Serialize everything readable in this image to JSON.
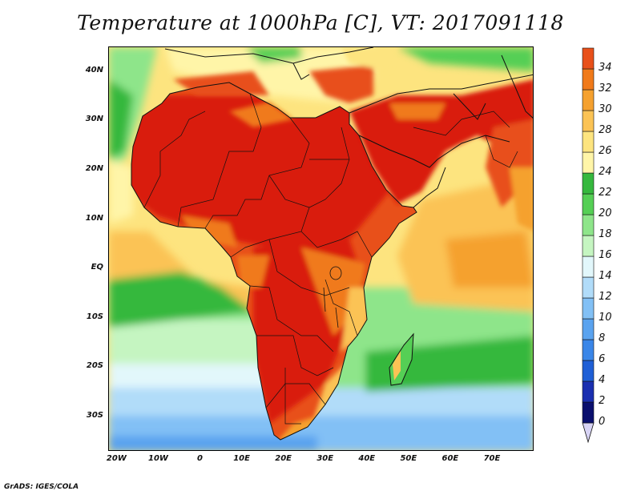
{
  "title": "Temperature at 1000hPa [C], VT: 2017091118",
  "footer": "GrADS: IGES/COLA",
  "map": {
    "lon_range": [
      -22,
      80
    ],
    "lat_range": [
      -37,
      45
    ],
    "lat_labels": [
      {
        "lat": 40,
        "text": "40N"
      },
      {
        "lat": 30,
        "text": "30N"
      },
      {
        "lat": 20,
        "text": "20N"
      },
      {
        "lat": 10,
        "text": "10N"
      },
      {
        "lat": 0,
        "text": "EQ"
      },
      {
        "lat": -10,
        "text": "10S"
      },
      {
        "lat": -20,
        "text": "20S"
      },
      {
        "lat": -30,
        "text": "30S"
      }
    ],
    "lon_labels": [
      {
        "lon": -20,
        "text": "20W"
      },
      {
        "lon": -10,
        "text": "10W"
      },
      {
        "lon": 0,
        "text": "0"
      },
      {
        "lon": 10,
        "text": "10E"
      },
      {
        "lon": 20,
        "text": "20E"
      },
      {
        "lon": 30,
        "text": "30E"
      },
      {
        "lon": 40,
        "text": "40E"
      },
      {
        "lon": 50,
        "text": "50E"
      },
      {
        "lon": 60,
        "text": "60E"
      },
      {
        "lon": 70,
        "text": "70E"
      }
    ]
  },
  "colorbar": {
    "colors": [
      "#0a0f6e",
      "#1a2fb0",
      "#1f5fd6",
      "#3a86e8",
      "#5aa3ef",
      "#82c0f5",
      "#b1dcf9",
      "#e2f7fb",
      "#c5f5c1",
      "#8ee58a",
      "#55cf55",
      "#36b83e",
      "#fff5a8",
      "#fde47f",
      "#fbc355",
      "#f5a12f",
      "#f07a1a",
      "#e8501a",
      "#d91e10"
    ],
    "labels": [
      "0",
      "2",
      "4",
      "6",
      "8",
      "10",
      "12",
      "14",
      "16",
      "18",
      "20",
      "22",
      "24",
      "26",
      "28",
      "30",
      "32",
      "34"
    ]
  }
}
